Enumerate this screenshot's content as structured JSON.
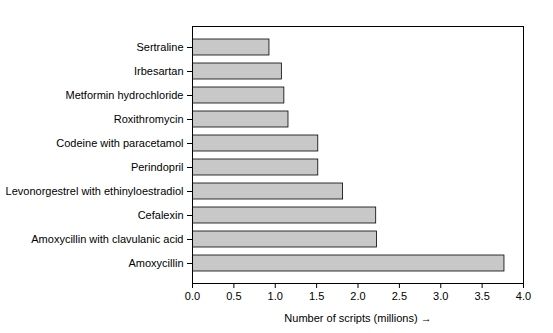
{
  "chart_data": {
    "type": "bar",
    "orientation": "horizontal",
    "xlabel": "Number of scripts (millions)",
    "categories": [
      "Sertraline",
      "Irbesartan",
      "Metformin hydrochloride",
      "Roxithromycin",
      "Codeine with paracetamol",
      "Perindopril",
      "Levonorgestrel with ethinyloestradiol",
      "Cefalexin",
      "Amoxycillin with clavulanic acid",
      "Amoxycillin"
    ],
    "values": [
      0.93,
      1.08,
      1.11,
      1.16,
      1.52,
      1.52,
      1.82,
      2.22,
      2.23,
      3.77
    ],
    "color": "#c8c8c8",
    "xlim": [
      0,
      4
    ],
    "xticks": [
      {
        "value": 0,
        "label": "0.0"
      },
      0.5,
      {
        "value": 1,
        "label": "1.0"
      },
      1.5,
      {
        "value": 2,
        "label": "2.0"
      },
      2.5,
      {
        "value": 3,
        "label": "3.0"
      },
      3.5,
      {
        "value": 4,
        "label": "4.0"
      }
    ],
    "grid": false
  }
}
